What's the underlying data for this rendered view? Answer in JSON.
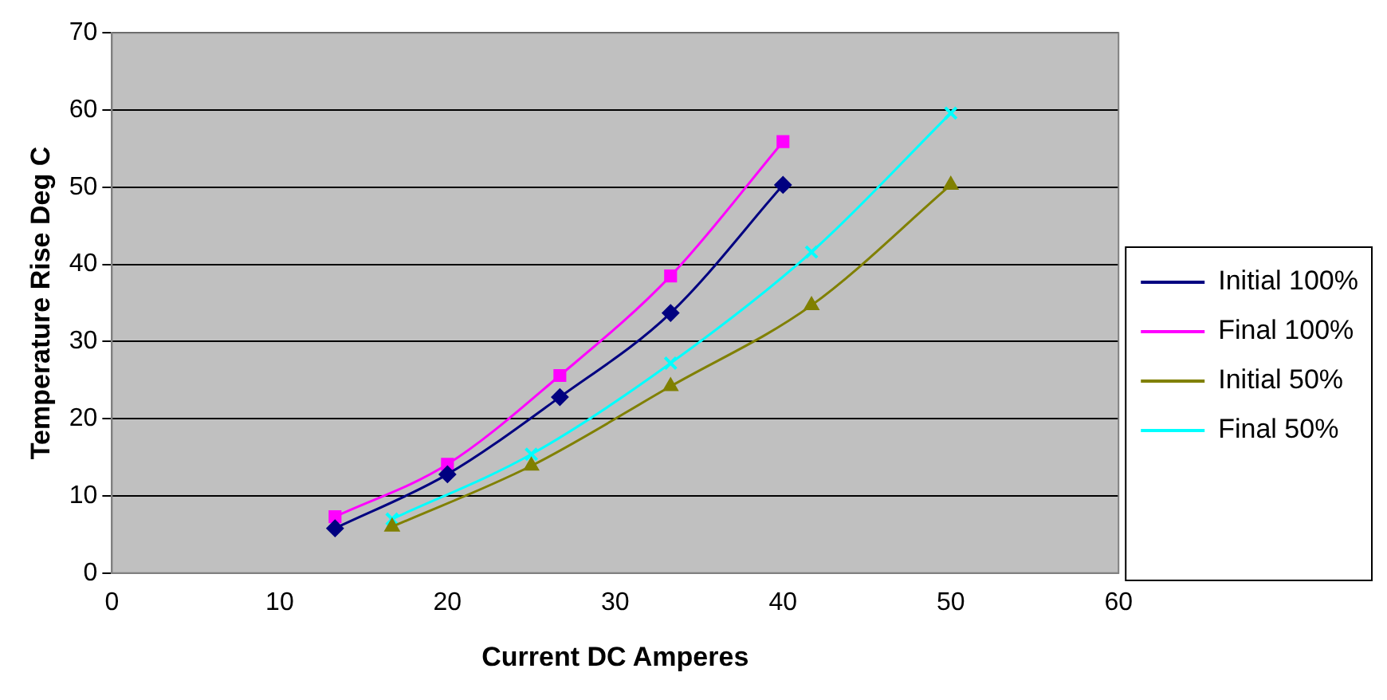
{
  "chart_data": {
    "type": "line",
    "xlabel": "Current DC Amperes",
    "ylabel": "Temperature Rise Deg C",
    "xlim": [
      0,
      60
    ],
    "xticks": [
      0,
      10,
      20,
      30,
      40,
      50,
      60
    ],
    "ylim": [
      0,
      70
    ],
    "yticks": [
      0,
      10,
      20,
      30,
      40,
      50,
      60,
      70
    ],
    "grid": "y",
    "legend": "right",
    "series": [
      {
        "name": "Initial 100%",
        "color": "#000080",
        "marker": "diamond",
        "x": [
          13.3,
          20,
          26.7,
          33.3,
          40
        ],
        "values": [
          5.8,
          12.8,
          22.8,
          33.7,
          50.3
        ]
      },
      {
        "name": "Final 100%",
        "color": "#ff00ff",
        "marker": "square",
        "x": [
          13.3,
          20,
          26.7,
          33.3,
          40
        ],
        "values": [
          7.3,
          14.1,
          25.6,
          38.5,
          55.9
        ]
      },
      {
        "name": "Initial 50%",
        "color": "#808000",
        "marker": "triangle",
        "x": [
          16.7,
          25,
          33.3,
          41.7,
          50
        ],
        "values": [
          6,
          13.9,
          24.2,
          34.7,
          50.3
        ]
      },
      {
        "name": "Final 50%",
        "color": "#00ffff",
        "marker": "cross",
        "x": [
          16.7,
          25,
          33.3,
          41.7,
          50
        ],
        "values": [
          7,
          15.4,
          27.2,
          41.6,
          59.6
        ]
      }
    ]
  }
}
